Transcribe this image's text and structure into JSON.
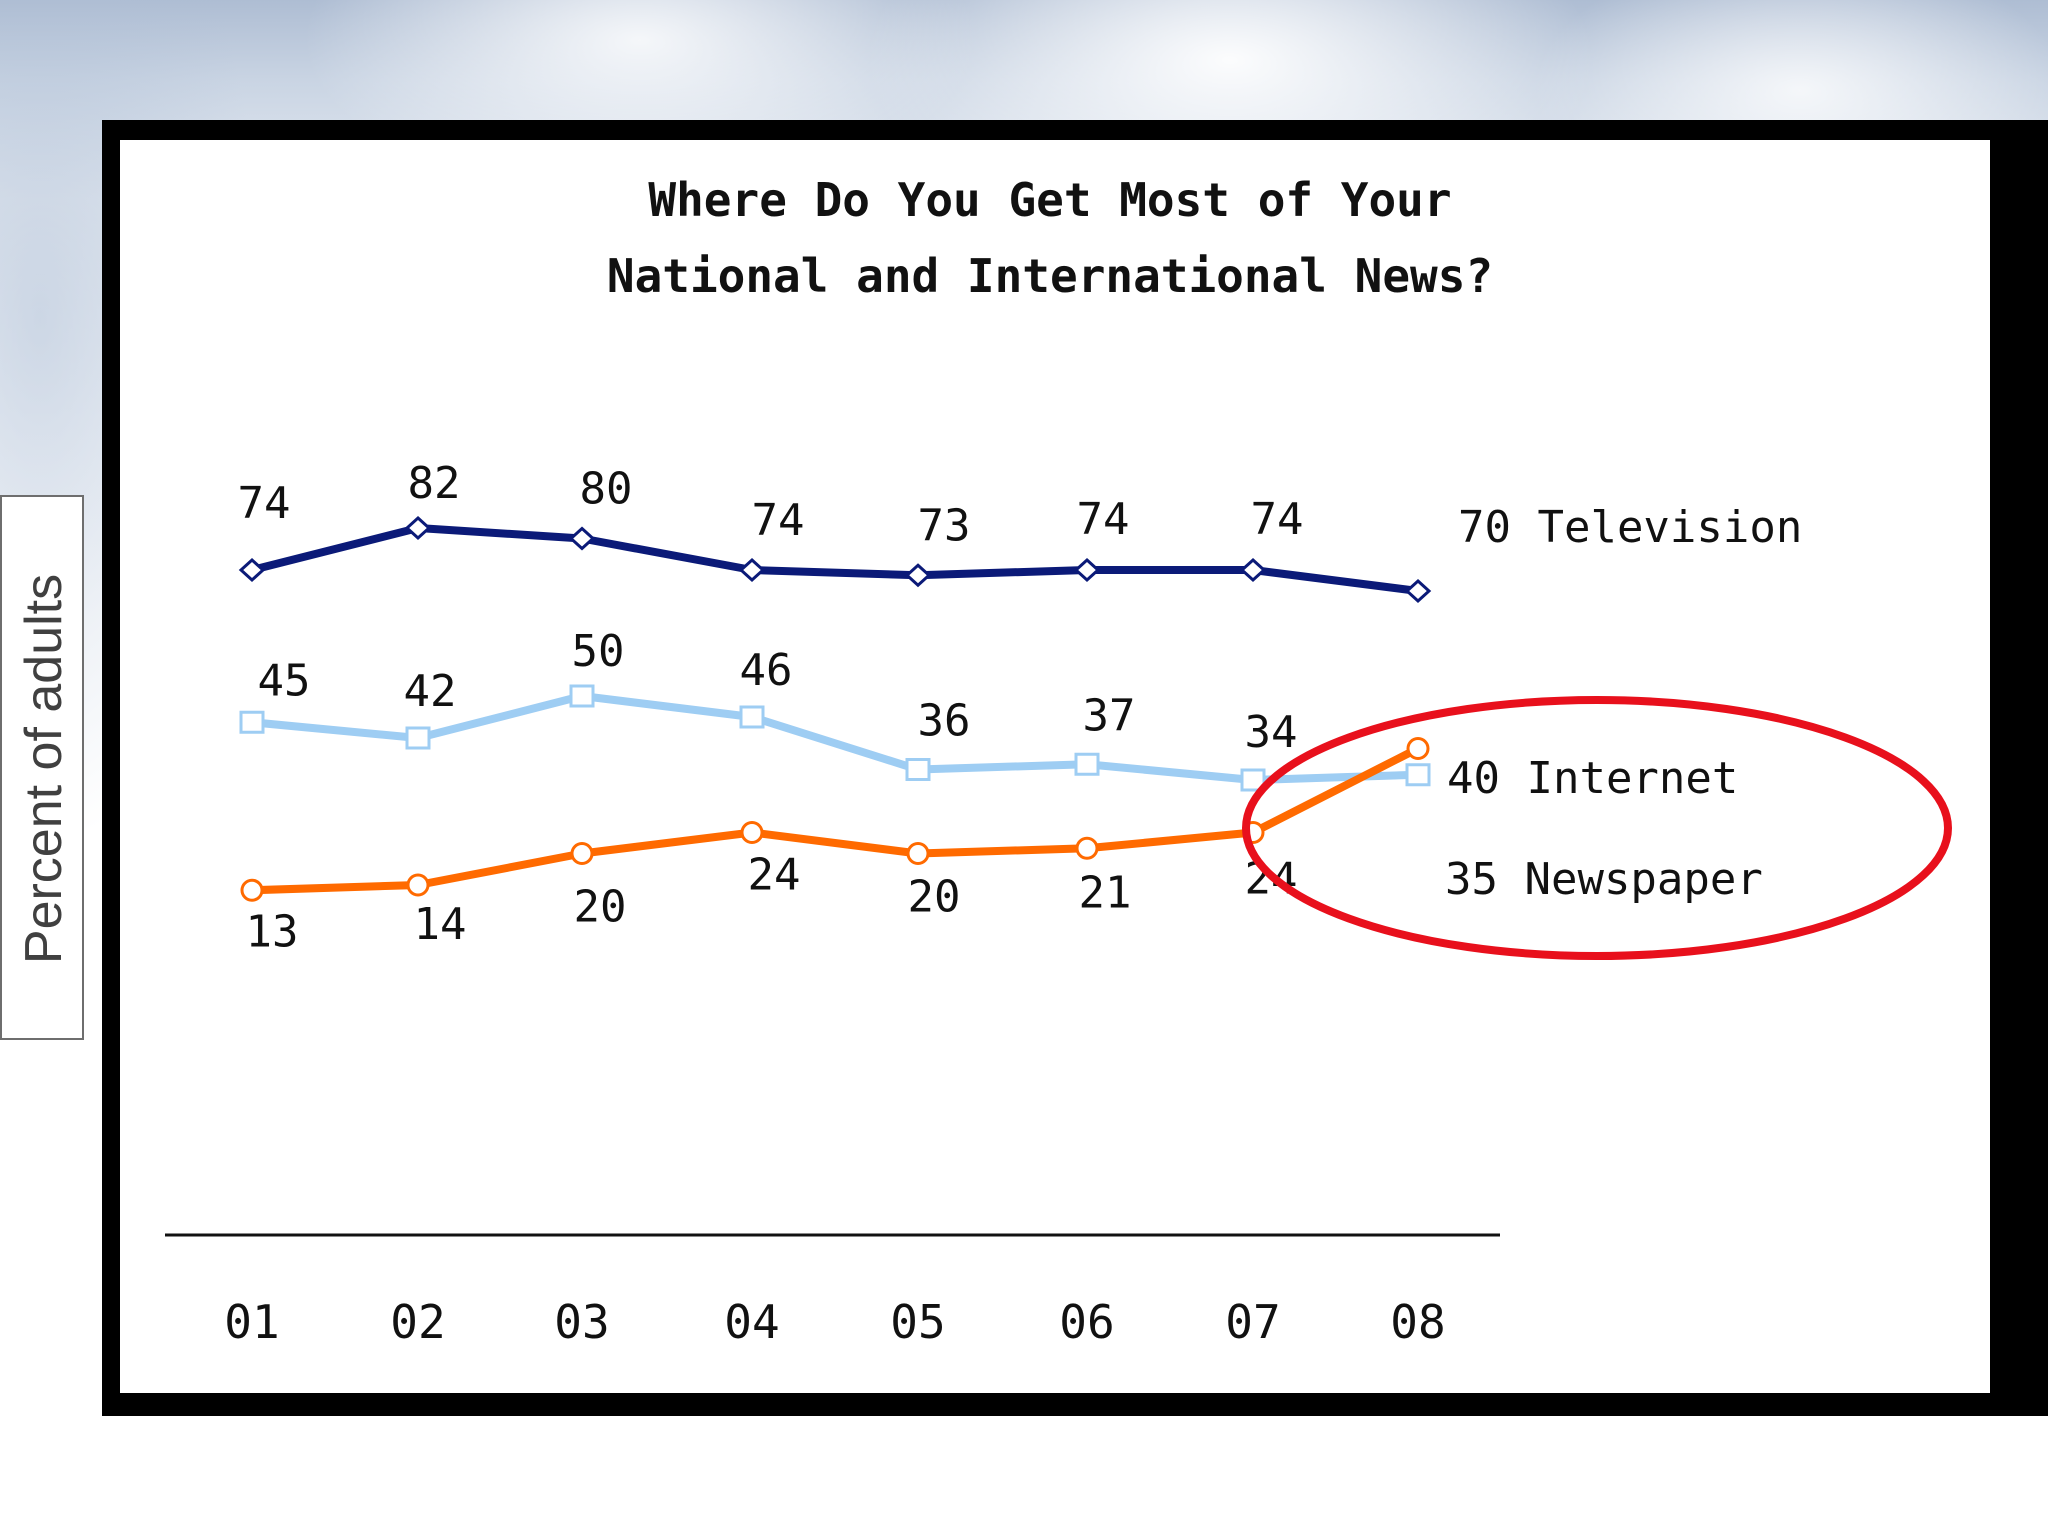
{
  "slide": {
    "y_axis_label": "Percent of adults"
  },
  "chart_data": {
    "type": "line",
    "title_lines": [
      "Where Do You Get Most of Your",
      "National and International News?"
    ],
    "x": [
      "01",
      "02",
      "03",
      "04",
      "05",
      "06",
      "07",
      "08"
    ],
    "ylabel": "Percent of adults",
    "grid": false,
    "series": [
      {
        "name": "Television",
        "values": [
          74,
          82,
          80,
          74,
          73,
          74,
          74,
          70
        ],
        "color": "#0b1a78",
        "marker": "diamond",
        "end_label": "70 Television"
      },
      {
        "name": "Newspaper",
        "values": [
          45,
          42,
          50,
          46,
          36,
          37,
          34,
          35
        ],
        "color": "#9ecdf3",
        "marker": "square",
        "end_label": "35 Newspaper"
      },
      {
        "name": "Internet",
        "values": [
          13,
          14,
          20,
          24,
          20,
          21,
          24,
          40
        ],
        "color": "#ff6a00",
        "marker": "circle",
        "end_label": "40 Internet"
      }
    ],
    "highlight": {
      "color": "#e8101c",
      "shape": "ellipse",
      "around": "Internet and Newspaper end points (08)"
    }
  }
}
